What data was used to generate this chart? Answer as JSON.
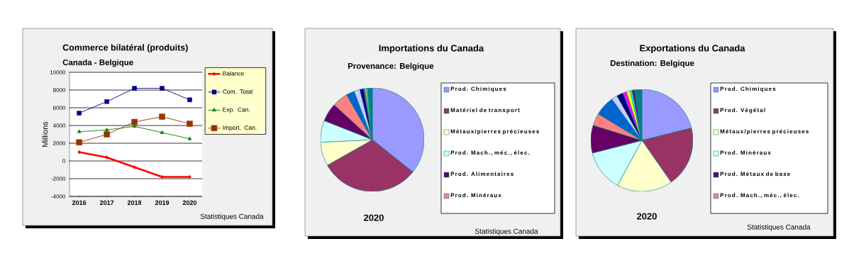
{
  "chart_data": [
    {
      "type": "line",
      "title": "Commerce bilatéral (produits)",
      "subtitle": "Canada - Belgique",
      "ylabel": "Millions",
      "categories": [
        "2016",
        "2017",
        "2018",
        "2019",
        "2020"
      ],
      "series": [
        {
          "name": "Balance",
          "color": "#ff0000",
          "marker": "diamond",
          "values": [
            1000,
            400,
            -700,
            -1800,
            -1800
          ]
        },
        {
          "name": "Com. Total",
          "color": "#000080",
          "marker": "square",
          "values": [
            5400,
            6700,
            8200,
            8200,
            6900
          ]
        },
        {
          "name": "Exp. Can.",
          "color": "#008000",
          "marker": "triangle",
          "values": [
            3300,
            3500,
            3900,
            3200,
            2500
          ]
        },
        {
          "name": "Import. Can.",
          "color": "#993300",
          "marker": "square",
          "values": [
            2100,
            3000,
            4400,
            5000,
            4200
          ]
        }
      ],
      "ylim": [
        -4000,
        10000
      ],
      "yticks": [
        -4000,
        -2000,
        0,
        2000,
        4000,
        6000,
        8000,
        10000
      ],
      "grid": "y",
      "legend": "right",
      "annotations": [
        "Statistiques Canada"
      ]
    },
    {
      "type": "pie",
      "title": "Importations du Canada",
      "subtitle": "Provenance:  Belgique",
      "categories": [
        "Prod. Chimiques",
        "Matériel de transport",
        "Métaux/pierres précieuses",
        "Prod. Mach., méc., élec.",
        "Prod. Alimentaires",
        "Prod. Minéraux",
        null,
        null,
        null,
        null,
        null,
        null,
        null
      ],
      "values": [
        35.7,
        31.1,
        7.4,
        6.8,
        5.8,
        4.9,
        2.6,
        1.8,
        1.2,
        0.4,
        0.4,
        0.4,
        1.5
      ],
      "colors": [
        "#9999ff",
        "#993366",
        "#ffffcc",
        "#ccffff",
        "#660066",
        "#ff8080",
        "#0066cc",
        "#ccccff",
        "#000080",
        "#ff00ff",
        "#ffff00",
        "#00ffff",
        "#008080"
      ],
      "legend": "right",
      "annotations": [
        "2020",
        "Statistiques Canada"
      ]
    },
    {
      "type": "pie",
      "title": "Exportations du Canada",
      "subtitle": "Destination:  Belgique",
      "categories": [
        "Prod. Chimiques",
        "Prod. Végétal",
        "Métaux/pierres précieuses",
        "Prod. Minéraux",
        "Prod. Métaux de base",
        "Prod. Mach., méc., élec.",
        null,
        null,
        null,
        null,
        null,
        null,
        null,
        null
      ],
      "values": [
        21.1,
        19.2,
        17.6,
        13.1,
        8.8,
        3.9,
        6.3,
        1.9,
        2.0,
        1.2,
        1.2,
        0.6,
        0.8,
        2.3
      ],
      "colors": [
        "#9999ff",
        "#993366",
        "#ffffcc",
        "#ccffff",
        "#660066",
        "#ff8080",
        "#0066cc",
        "#ccccff",
        "#000080",
        "#ff00ff",
        "#ffff00",
        "#00ffff",
        "#800080",
        "#008080"
      ],
      "legend": "right",
      "annotations": [
        "2020",
        "Statistiques Canada"
      ]
    }
  ]
}
